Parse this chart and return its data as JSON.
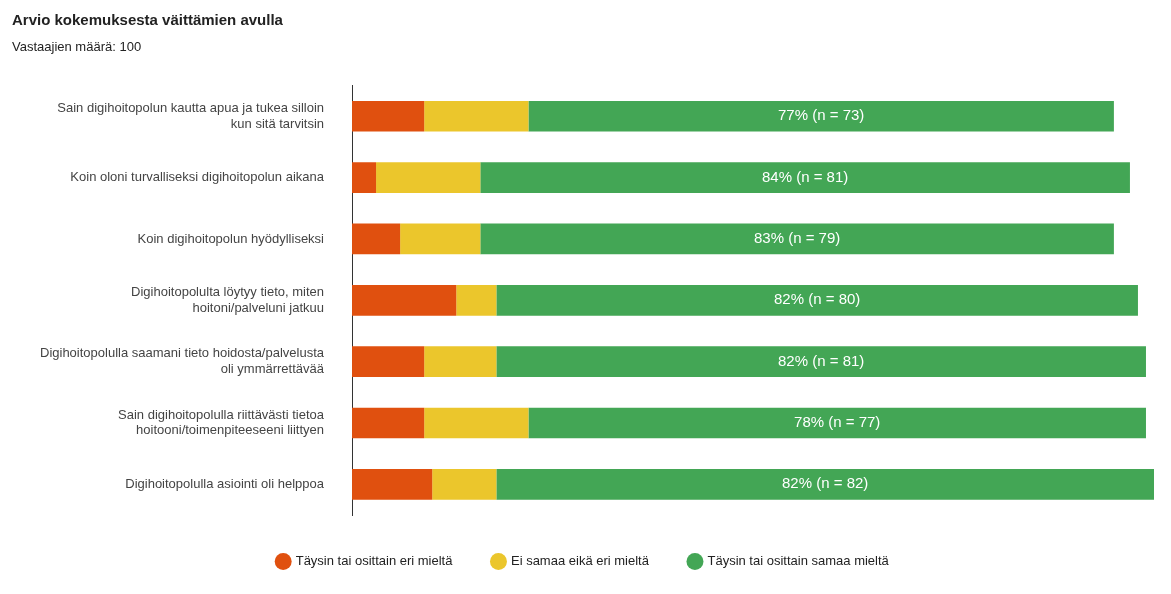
{
  "chart_data": {
    "type": "bar",
    "orientation": "horizontal",
    "stacked": true,
    "xlim": [
      0,
      100
    ],
    "tick_labels": "y",
    "title": "Arvio kokemuksesta väittämien avulla",
    "subtitle": "Vastaajien määrä: 100",
    "legend": "bottom",
    "categories": [
      "Sain digihoitopolun kautta apua ja tukea silloin kun sitä tarvitsin",
      "Koin oloni turvalliseksi digihoitopolun aikana",
      "Koin digihoitopolun hyödylliseksi",
      "Digihoitopolulta löytyy tieto, miten hoitoni/palveluni jatkuu",
      "Digihoitopolulla saamani tieto hoidosta/palvelusta oli ymmärrettävää",
      "Sain digihoitopolulla riittävästi tietoa hoitooni/toimenpiteeseeni liittyen",
      "Digihoitopolulla asiointi oli helppoa"
    ],
    "series": [
      {
        "name": "Täysin tai osittain eri mieltä",
        "color": "#e0500f",
        "values": [
          9,
          3,
          6,
          13,
          9,
          9,
          10
        ]
      },
      {
        "name": "Ei samaa eikä eri mieltä",
        "color": "#ebc62c",
        "values": [
          13,
          13,
          10,
          5,
          9,
          13,
          8
        ]
      },
      {
        "name": "Täysin tai osittain samaa mieltä",
        "color": "#43a655",
        "values": [
          73,
          81,
          79,
          80,
          81,
          77,
          82
        ],
        "value_labels": [
          "77% (n = 73)",
          "84% (n = 81)",
          "83% (n = 79)",
          "82% (n = 80)",
          "82% (n = 81)",
          "78% (n = 77)",
          "82% (n = 82)"
        ]
      }
    ]
  }
}
